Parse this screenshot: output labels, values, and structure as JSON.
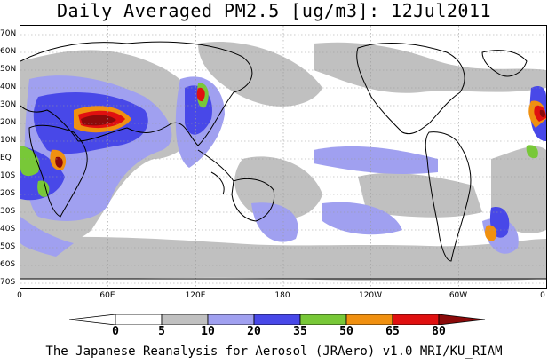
{
  "title": "Daily Averaged PM2.5 [ug/m3]: 12Jul2011",
  "footer": "The Japanese Reanalysis for Aerosol (JRAero) v1.0 MRI/KU_RIAM",
  "y_axis": {
    "labels": [
      "70N",
      "60N",
      "50N",
      "40N",
      "30N",
      "20N",
      "10N",
      "EQ",
      "10S",
      "20S",
      "30S",
      "40S",
      "50S",
      "60S",
      "70S"
    ]
  },
  "x_axis": {
    "labels": [
      "0",
      "60E",
      "120E",
      "180",
      "120W",
      "60W",
      "0"
    ]
  },
  "colorbar": {
    "labels": [
      "0",
      "5",
      "10",
      "20",
      "35",
      "50",
      "65",
      "80"
    ],
    "colors": [
      "#ffffff",
      "#ffffff",
      "#c0c0c0",
      "#a0a0f0",
      "#4848e8",
      "#78c838",
      "#f09010",
      "#e01010",
      "#8b0a0a"
    ]
  }
}
